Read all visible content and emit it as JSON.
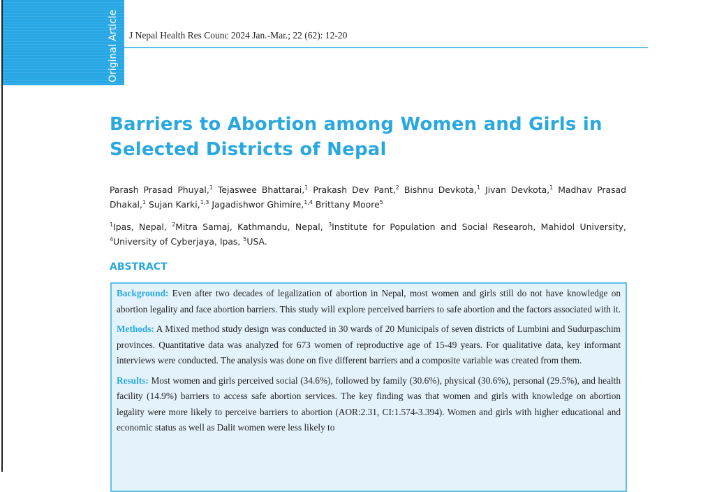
{
  "band_label": "Original Article",
  "journal_citation": "J Nepal Health Res Counc  2024 Jan.-Mar.; 22 (62): 12-20",
  "title": "Barriers to Abortion among Women and Girls in Selected Districts of Nepal",
  "authors": [
    {
      "name": "Parash Prasad Phuyal,",
      "sup": "1"
    },
    {
      "name": "Tejaswee Bhattarai,",
      "sup": "1"
    },
    {
      "name": "Prakash Dev Pant,",
      "sup": "2"
    },
    {
      "name": "Bishnu Devkota,",
      "sup": "1"
    },
    {
      "name": "Jivan Devkota,",
      "sup": "1"
    },
    {
      "name": "Madhav Prasad Dhakal,",
      "sup": "1"
    },
    {
      "name": "Sujan Karki,",
      "sup": "1,3"
    },
    {
      "name": "Jagadishwor Ghimire,",
      "sup": "1,4"
    },
    {
      "name": "Brittany Moore",
      "sup": "5"
    }
  ],
  "affiliations": [
    {
      "sup": "1",
      "text": "Ipas, Nepal,"
    },
    {
      "sup": "2",
      "text": "Mitra Samaj, Kathmandu, Nepal,"
    },
    {
      "sup": "3",
      "text": "Institute for Population and Social Researoh, Mahidol University,"
    },
    {
      "sup": "4",
      "text": "University of Cyberjaya, Ipas,"
    },
    {
      "sup": "5",
      "text": "USA."
    }
  ],
  "abstract": {
    "heading": "ABSTRACT",
    "sections": [
      {
        "label": "Background:",
        "text": "Even after two decades of legalization of abortion in Nepal, most women and girls still do not have knowledge on abortion legality and face abortion barriers. This study will explore perceived barriers to safe abortion and the factors associated with it."
      },
      {
        "label": "Methods:",
        "text": "A Mixed method study design was conducted in 30 wards of 20 Municipals of seven districts of Lumbini and Sudurpaschim provinces. Quantitative data was analyzed for 673 women of reproductive age of 15-49 years. For qualitative data, key informant interviews were conducted. The analysis was done on five different barriers and a composite variable was created from them."
      },
      {
        "label": "Results:",
        "text": "Most women and girls perceived social (34.6%), followed by family (30.6%), physical (30.6%), personal (29.5%), and health facility (14.9%) barriers to access safe abortion services. The key finding was that women and girls with knowledge on abortion legality were more likely to perceive barriers to abortion (AOR:2.31, CI:1.574-3.394). Women and girls with higher educational and economic status as well as Dalit women were less likely to"
      }
    ]
  }
}
